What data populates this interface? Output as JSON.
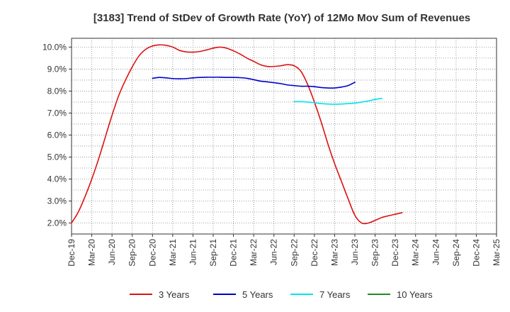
{
  "chart_data": {
    "type": "line",
    "title": "[3183]  Trend of StDev of Growth Rate (YoY) of 12Mo Mov Sum of Revenues",
    "xlabel": "",
    "ylabel": "",
    "ylim": [
      1.5,
      10.4
    ],
    "ytick_values": [
      2.0,
      3.0,
      4.0,
      5.0,
      6.0,
      7.0,
      8.0,
      9.0,
      10.0
    ],
    "ytick_labels": [
      "2.0%",
      "3.0%",
      "4.0%",
      "5.0%",
      "6.0%",
      "7.0%",
      "8.0%",
      "9.0%",
      "10.0%"
    ],
    "xtick_labels": [
      "Dec-19",
      "Mar-20",
      "Jun-20",
      "Sep-20",
      "Dec-20",
      "Mar-21",
      "Jun-21",
      "Sep-21",
      "Dec-21",
      "Mar-22",
      "Jun-22",
      "Sep-22",
      "Dec-22",
      "Mar-23",
      "Jun-23",
      "Sep-23",
      "Dec-23",
      "Mar-24",
      "Jun-24",
      "Sep-24",
      "Dec-24",
      "Mar-25"
    ],
    "grid": true,
    "legend_position": "bottom",
    "series": [
      {
        "name": "3 Years",
        "color": "#dd1111",
        "start_index": 0,
        "values": [
          2.0,
          2.5,
          3.2,
          4.0,
          4.9,
          5.9,
          6.9,
          7.8,
          8.5,
          9.1,
          9.6,
          9.9,
          10.05,
          10.1,
          10.08,
          10.0,
          9.85,
          9.78,
          9.77,
          9.8,
          9.87,
          9.95,
          10.0,
          9.95,
          9.83,
          9.68,
          9.5,
          9.35,
          9.2,
          9.12,
          9.12,
          9.15,
          9.2,
          9.15,
          8.9,
          8.3,
          7.5,
          6.6,
          5.6,
          4.7,
          3.9,
          3.1,
          2.35,
          2.0,
          2.0,
          2.12,
          2.25,
          2.33,
          2.4,
          2.47
        ]
      },
      {
        "name": "5 Years",
        "color": "#0000cc",
        "start_index": 12,
        "values": [
          8.58,
          8.62,
          8.6,
          8.57,
          8.56,
          8.57,
          8.6,
          8.62,
          8.63,
          8.63,
          8.63,
          8.62,
          8.62,
          8.61,
          8.58,
          8.52,
          8.45,
          8.42,
          8.38,
          8.34,
          8.28,
          8.25,
          8.22,
          8.22,
          8.2,
          8.16,
          8.14,
          8.14,
          8.18,
          8.25,
          8.4
        ]
      },
      {
        "name": "7 Years",
        "color": "#00e5ee",
        "start_index": 33,
        "values": [
          7.52,
          7.52,
          7.5,
          7.47,
          7.43,
          7.41,
          7.4,
          7.41,
          7.43,
          7.45,
          7.5,
          7.55,
          7.62,
          7.67
        ]
      },
      {
        "name": "10 Years",
        "color": "#228b22",
        "start_index": 0,
        "values": []
      }
    ]
  }
}
